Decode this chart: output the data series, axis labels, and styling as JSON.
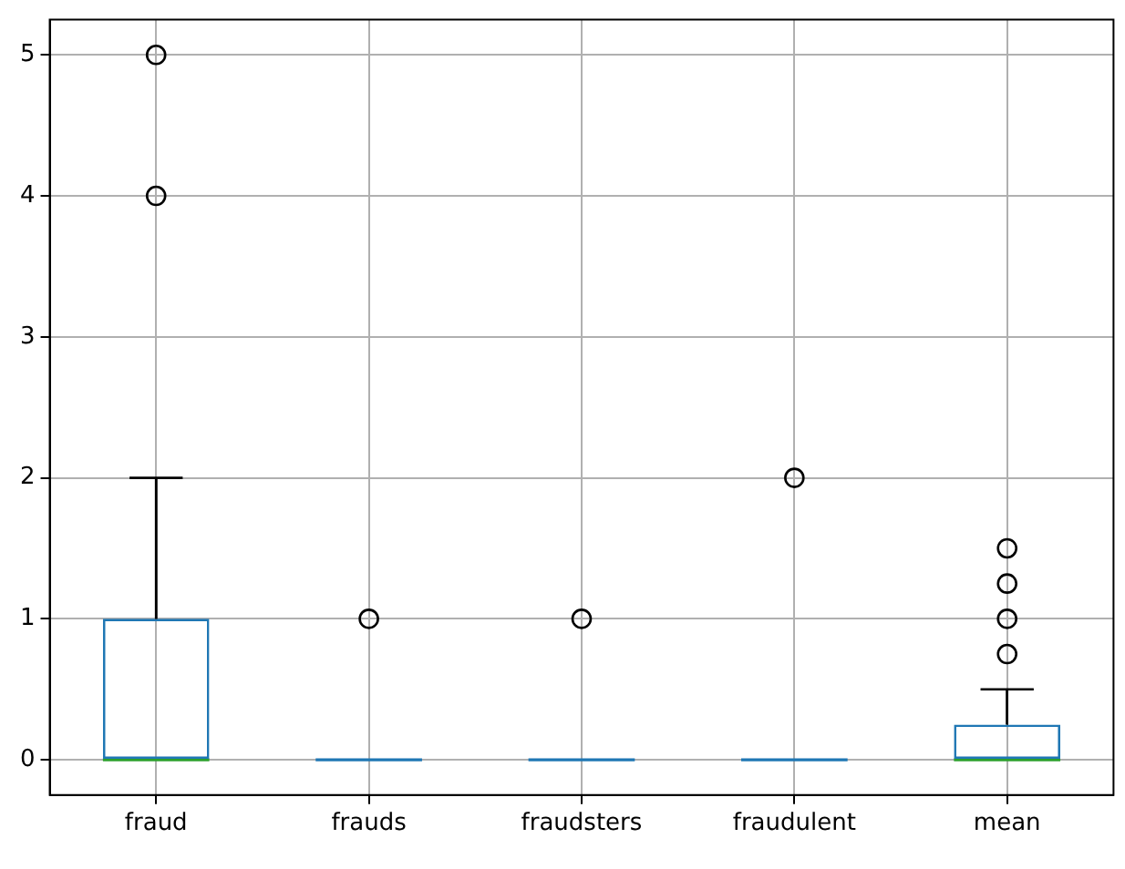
{
  "chart_data": {
    "type": "box",
    "categories": [
      "fraud",
      "frauds",
      "fraudsters",
      "fraudulent",
      "mean"
    ],
    "boxes": [
      {
        "low": 0,
        "q1": 0,
        "median": 0,
        "q3": 1,
        "high": 2,
        "outliers": [
          4,
          5
        ]
      },
      {
        "low": 0,
        "q1": 0,
        "median": 0,
        "q3": 0,
        "high": 0,
        "outliers": [
          1
        ]
      },
      {
        "low": 0,
        "q1": 0,
        "median": 0,
        "q3": 0,
        "high": 0,
        "outliers": [
          1
        ]
      },
      {
        "low": 0,
        "q1": 0,
        "median": 0,
        "q3": 0,
        "high": 0,
        "outliers": [
          2
        ]
      },
      {
        "low": 0,
        "q1": 0,
        "median": 0,
        "q3": 0.25,
        "high": 0.5,
        "outliers": [
          0.75,
          1,
          1.25,
          1.5
        ]
      }
    ],
    "color": "#1f77b4",
    "ylim": [
      -0.25,
      5.25
    ],
    "yticks": [
      0,
      1,
      2,
      3,
      4,
      5
    ],
    "grid": true,
    "marker": "circle",
    "legend": false
  }
}
